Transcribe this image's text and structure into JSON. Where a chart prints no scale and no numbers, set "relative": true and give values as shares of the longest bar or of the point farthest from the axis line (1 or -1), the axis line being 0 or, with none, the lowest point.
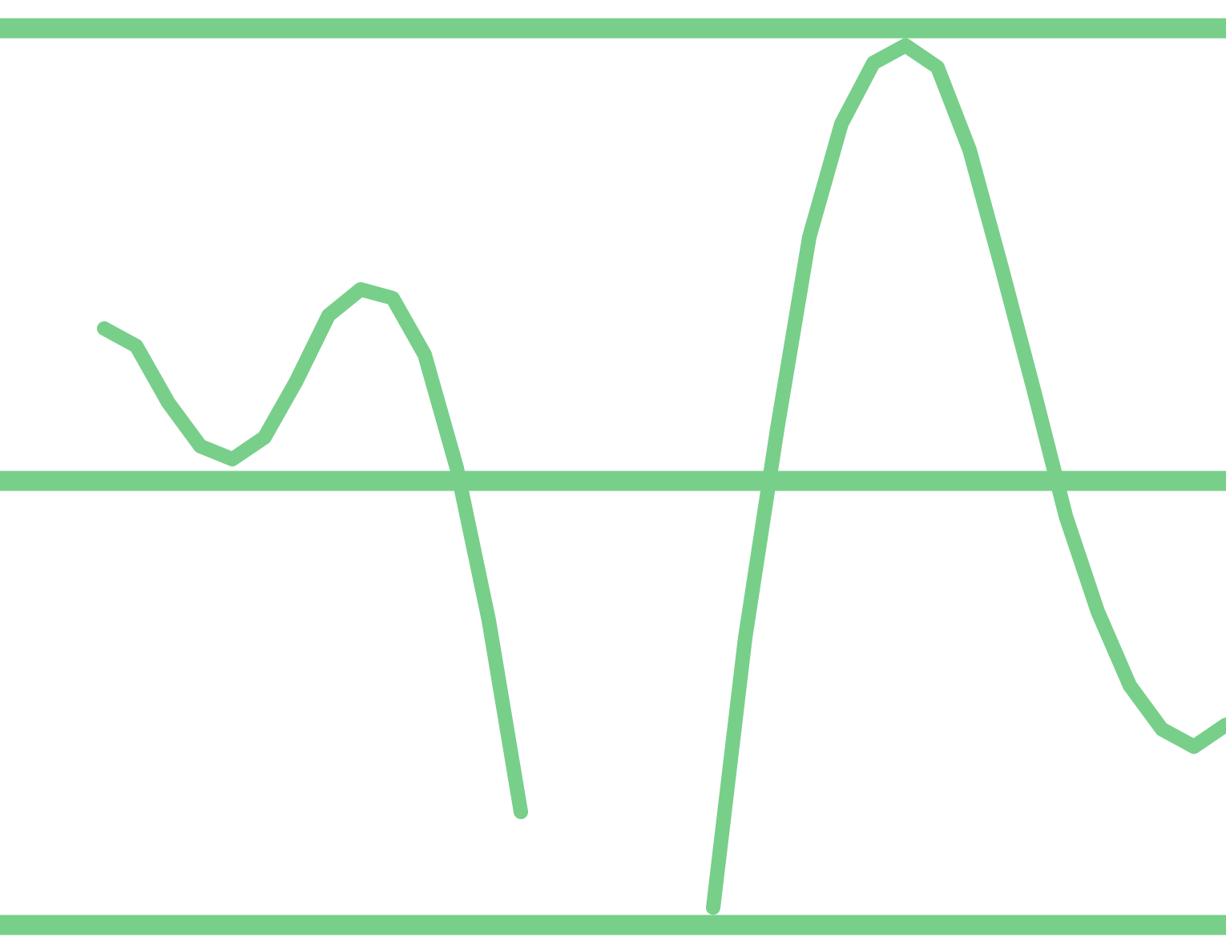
{
  "chart_data": {
    "type": "line",
    "relative": true,
    "grid": false,
    "legend": false,
    "categories": [
      null,
      null,
      null,
      null,
      null,
      null,
      null,
      null,
      null,
      null,
      null,
      null,
      null,
      null,
      null,
      null,
      null,
      null,
      null,
      null,
      null,
      null,
      null,
      null,
      null,
      null,
      null,
      null,
      null,
      null,
      null,
      null,
      null,
      null,
      null,
      null
    ],
    "series": [
      {
        "color": "#78cf8a",
        "values": [
          0.35,
          0.31,
          0.18,
          0.08,
          0.05,
          0.1,
          0.23,
          0.38,
          0.44,
          0.42,
          0.29,
          0.03,
          -0.32,
          -0.76,
          null,
          null,
          null,
          null,
          null,
          null,
          null,
          null,
          null,
          null,
          null,
          null,
          null,
          null,
          null,
          null,
          null,
          null,
          null,
          null,
          null,
          null
        ]
      },
      {
        "color": "#78cf8a",
        "values": [
          null,
          null,
          null,
          null,
          null,
          null,
          null,
          null,
          null,
          null,
          null,
          null,
          null,
          null,
          null,
          null,
          null,
          null,
          null,
          -0.98,
          -0.36,
          0.12,
          0.56,
          0.82,
          0.96,
          1,
          0.95,
          0.76,
          0.49,
          0.21,
          -0.08,
          -0.3,
          -0.47,
          -0.57,
          -0.61,
          -0.56
        ]
      }
    ],
    "ref_lines": [
      {
        "axis": "y",
        "value": 0,
        "color": "#78cf8a"
      }
    ]
  }
}
